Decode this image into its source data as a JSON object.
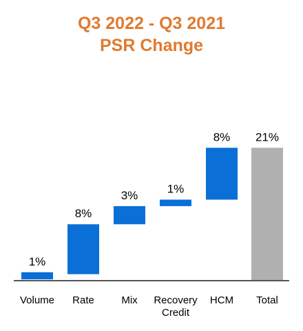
{
  "title": {
    "line1": "Q3 2022 - Q3 2021",
    "line2": "PSR Change",
    "color": "#e07a2e"
  },
  "chart_data": {
    "type": "bar",
    "subtype": "waterfall",
    "title": "Q3 2022 - Q3 2021 PSR Change",
    "categories": [
      "Volume",
      "Rate",
      "Mix",
      "Recovery Credit",
      "HCM",
      "Total"
    ],
    "category_lines": [
      [
        "Volume"
      ],
      [
        "Rate"
      ],
      [
        "Mix"
      ],
      [
        "Recovery",
        "Credit"
      ],
      [
        "HCM"
      ],
      [
        "Total"
      ]
    ],
    "values": [
      1,
      8,
      3,
      1,
      8,
      21
    ],
    "labels": [
      "1%",
      "8%",
      "3%",
      "1%",
      "8%",
      "21%"
    ],
    "ranges": [
      [
        0.2,
        1.3
      ],
      [
        1.0,
        8.7
      ],
      [
        8.7,
        11.5
      ],
      [
        11.5,
        12.5
      ],
      [
        12.5,
        20.5
      ],
      [
        0,
        20.5
      ]
    ],
    "is_total": [
      false,
      false,
      false,
      false,
      false,
      true
    ],
    "ylim": [
      0,
      21
    ],
    "xlabel": "",
    "ylabel": "",
    "grid": false,
    "legend": "none",
    "colors": {
      "increase": "#0a6fd6",
      "total": "#b0b0b0",
      "axis": "#555555"
    }
  }
}
